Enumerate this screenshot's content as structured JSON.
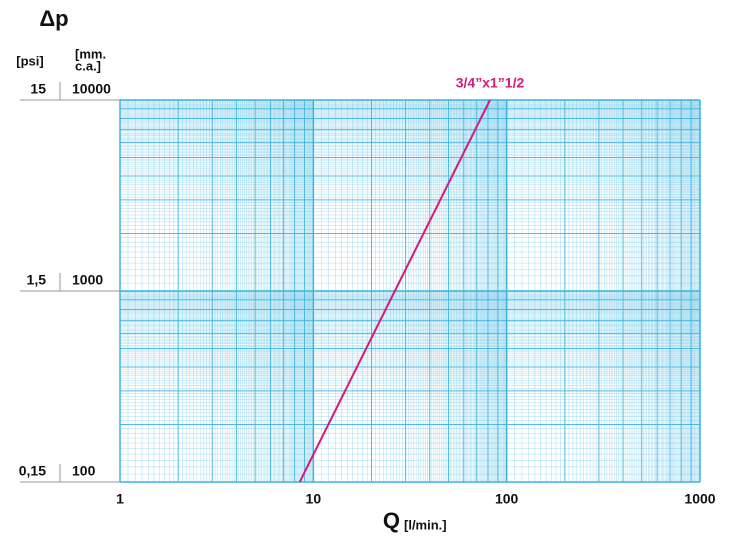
{
  "chart_data": {
    "type": "line",
    "title": "Δp",
    "y_unit_psi": "[psi]",
    "y_unit_mm": [
      "[mm.",
      "c.a.]"
    ],
    "x_label": "Q",
    "x_unit": "[l/min.]",
    "log_x": true,
    "log_y": true,
    "grid": true,
    "grid_color": "#3db4df",
    "xlim": [
      1,
      1000
    ],
    "xticks": [
      1,
      10,
      100,
      1000
    ],
    "ylim": [
      100,
      10000
    ],
    "yticks": [
      100,
      1000,
      10000
    ],
    "y2lim": [
      0.15,
      15
    ],
    "y2ticks": [
      {
        "value": 0.15,
        "label": "0,15"
      },
      {
        "value": 1.5,
        "label": "1,5"
      },
      15
    ],
    "series": [
      {
        "name": "3/4”x1”1/2",
        "color": "#d6197d",
        "x": [
          8.5,
          82
        ],
        "values": [
          100,
          10000
        ]
      }
    ]
  }
}
